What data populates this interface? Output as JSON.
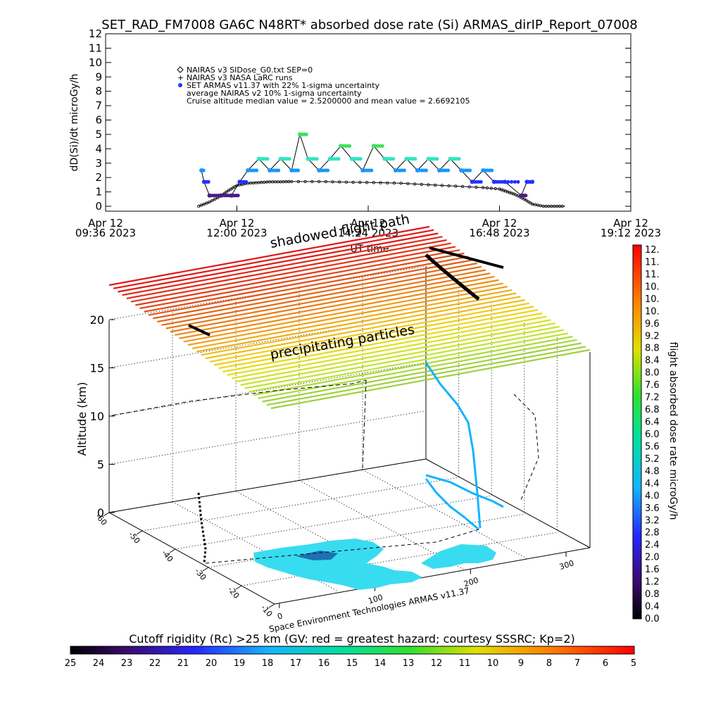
{
  "title": "SET_RAD_FM7008  GA6C N48RT* absorbed dose rate (Si) ARMAS_dirIP_Report_07008",
  "chart_data": [
    {
      "type": "line",
      "ylabel": "dD(Si)/dt microGy/h",
      "xlabel": "UT time",
      "ylim": [
        0,
        12
      ],
      "yticks": [
        "0",
        "1",
        "2",
        "3",
        "4",
        "5",
        "6",
        "7",
        "8",
        "9",
        "10",
        "11",
        "12"
      ],
      "xticks": [
        {
          "l1": "Apr 12",
          "l2": "09:36 2023"
        },
        {
          "l1": "Apr 12",
          "l2": "12:00 2023"
        },
        {
          "l1": "Apr 12",
          "l2": "14:24 2023"
        },
        {
          "l1": "Apr 12",
          "l2": "16:48 2023"
        },
        {
          "l1": "Apr 12",
          "l2": "19:12 2023"
        }
      ],
      "legend": [
        "NAIRAS v3 SIDose_G0.txt SEP=0",
        "NAIRAS v3 NASA LaRC runs",
        "SET ARMAS v11.37 with 22% 1-sigma uncertainty",
        "average NAIRAS v2 10% 1-sigma uncertainty",
        "Cruise altitude median value = 2.5200000 and mean value = 2.6692105"
      ],
      "series": [
        {
          "name": "NAIRAS v3 SIDose_G0.txt SEP=0",
          "x": [
            11.3,
            11.5,
            11.7,
            11.85,
            12.0,
            12.2,
            12.4,
            12.6,
            12.8,
            13.0,
            13.5,
            14.0,
            14.5,
            15.0,
            15.5,
            16.0,
            16.5,
            16.8,
            16.95,
            17.1,
            17.25,
            17.4,
            17.6,
            17.8,
            18.0
          ],
          "y": [
            0,
            0.3,
            0.7,
            1.1,
            1.45,
            1.6,
            1.65,
            1.7,
            1.7,
            1.72,
            1.72,
            1.68,
            1.65,
            1.6,
            1.5,
            1.4,
            1.3,
            1.2,
            1.0,
            0.8,
            0.5,
            0.15,
            0,
            0,
            0
          ]
        },
        {
          "name": "SET ARMAS v11.37 with 22% 1-sigma uncertainty",
          "x": [
            11.35,
            11.4,
            11.5,
            11.7,
            11.9,
            12.05,
            12.2,
            12.4,
            12.6,
            12.8,
            13.0,
            13.15,
            13.3,
            13.5,
            13.7,
            13.9,
            14.1,
            14.3,
            14.5,
            14.7,
            14.9,
            15.1,
            15.3,
            15.5,
            15.7,
            15.9,
            16.1,
            16.3,
            16.5,
            16.7,
            16.9,
            17.2,
            17.3,
            17.4
          ],
          "y": [
            2.5,
            1.7,
            0.75,
            0.75,
            0.75,
            1.7,
            2.5,
            3.3,
            2.5,
            3.3,
            2.5,
            5.0,
            3.3,
            2.5,
            3.3,
            4.2,
            3.3,
            2.5,
            4.2,
            3.3,
            2.5,
            3.3,
            2.5,
            3.3,
            2.5,
            3.3,
            2.5,
            1.7,
            2.5,
            1.7,
            1.7,
            0.75,
            1.7,
            1.7
          ]
        }
      ]
    },
    {
      "type": "scatter",
      "zlabel": "Altitude (km)",
      "zticks": [
        "0",
        "5",
        "10",
        "15",
        "20"
      ],
      "ylon_ticks": [
        "-60",
        "-50",
        "-40",
        "-30",
        "-20",
        "-10"
      ],
      "xlat_ticks": [
        "0",
        "100",
        "200",
        "300"
      ],
      "annotations": [
        "shadowed flight path",
        "precipitating particles"
      ],
      "colorbar_label": "flight absorbed dose rate microGy/h",
      "colorbar_ticks": [
        "12.",
        "11.",
        "11.",
        "10.",
        "10.",
        "10.",
        "9.6",
        "9.2",
        "8.8",
        "8.4",
        "8.0",
        "7.6",
        "7.2",
        "6.8",
        "6.4",
        "6.0",
        "5.6",
        "5.2",
        "4.8",
        "4.4",
        "4.0",
        "3.6",
        "3.2",
        "2.8",
        "2.4",
        "2.0",
        "1.6",
        "1.2",
        "0.8",
        "0.4",
        "0.0"
      ]
    }
  ],
  "credit": "Space Environment Technologies ARMAS v11.37",
  "cutoff_bar": {
    "label": "Cutoff rigidity (Rc) >25 km (GV: red = greatest hazard; courtesy SSSRC; Kp=2)",
    "ticks": [
      "25",
      "24",
      "23",
      "22",
      "21",
      "20",
      "19",
      "18",
      "17",
      "16",
      "15",
      "14",
      "13",
      "12",
      "11",
      "10",
      "9",
      "8",
      "7",
      "6",
      "5"
    ]
  }
}
